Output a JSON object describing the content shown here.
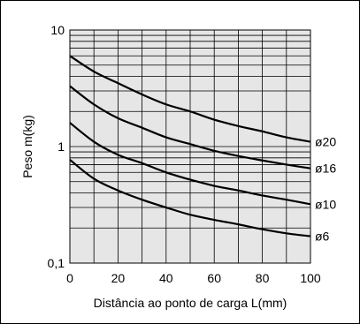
{
  "chart_data": {
    "type": "line",
    "xlabel": "Distância ao ponto de carga L(mm)",
    "ylabel": "Peso m(kg)",
    "xlim": [
      0,
      100
    ],
    "ylim": [
      0.1,
      10
    ],
    "yscale": "log",
    "grid": true,
    "x_ticks": [
      "0",
      "20",
      "40",
      "60",
      "80",
      "100"
    ],
    "y_ticks": [
      {
        "value": 10,
        "label": "10"
      },
      {
        "value": 1,
        "label": "1"
      },
      {
        "value": 0.1,
        "label": "0,1"
      }
    ],
    "series": [
      {
        "name": "ø20",
        "x": [
          0,
          10,
          20,
          30,
          40,
          50,
          60,
          70,
          80,
          90,
          100
        ],
        "y": [
          6.0,
          4.4,
          3.5,
          2.8,
          2.3,
          2.0,
          1.7,
          1.5,
          1.35,
          1.2,
          1.1
        ]
      },
      {
        "name": "ø16",
        "x": [
          0,
          10,
          20,
          30,
          40,
          50,
          60,
          70,
          80,
          90,
          100
        ],
        "y": [
          3.3,
          2.3,
          1.75,
          1.45,
          1.2,
          1.05,
          0.92,
          0.83,
          0.76,
          0.7,
          0.65
        ]
      },
      {
        "name": "ø10",
        "x": [
          0,
          10,
          20,
          30,
          40,
          50,
          60,
          70,
          80,
          90,
          100
        ],
        "y": [
          1.6,
          1.1,
          0.85,
          0.72,
          0.6,
          0.52,
          0.46,
          0.42,
          0.38,
          0.35,
          0.32
        ]
      },
      {
        "name": "ø6",
        "x": [
          0,
          10,
          20,
          30,
          40,
          50,
          60,
          70,
          80,
          90,
          100
        ],
        "y": [
          0.77,
          0.53,
          0.42,
          0.35,
          0.3,
          0.26,
          0.235,
          0.215,
          0.195,
          0.18,
          0.17
        ]
      }
    ]
  }
}
